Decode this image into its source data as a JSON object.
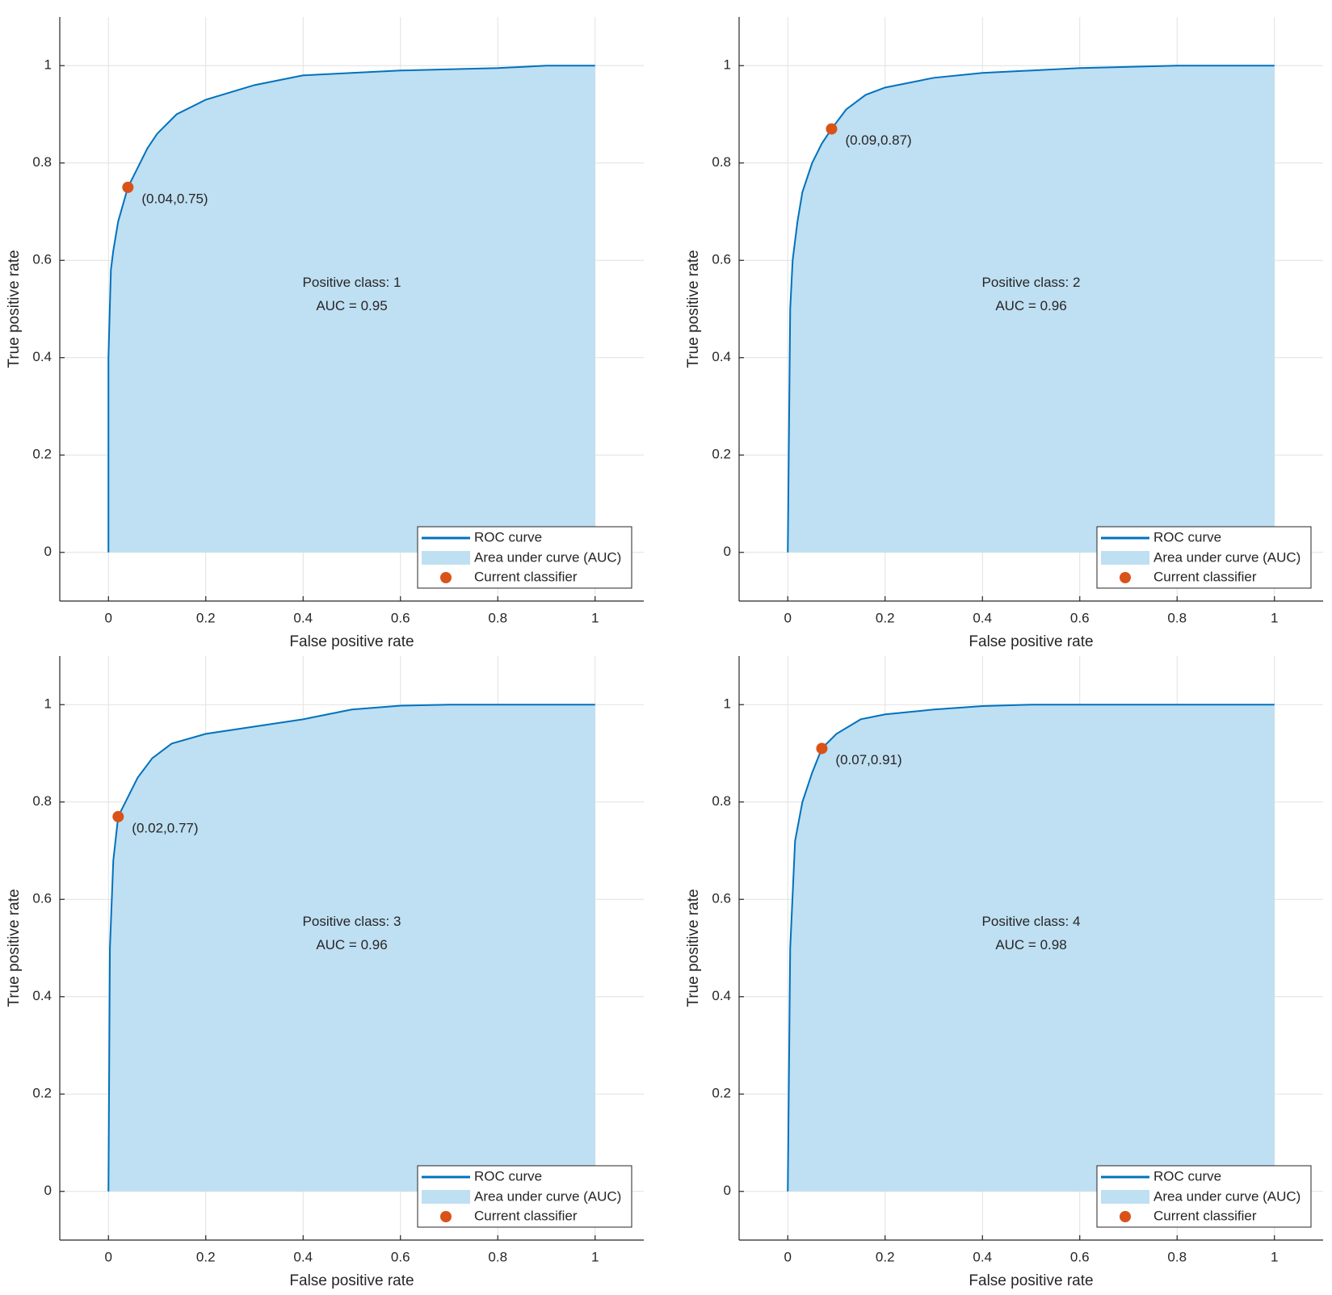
{
  "chart_data": [
    {
      "type": "roc",
      "xlabel": "False positive rate",
      "ylabel": "True positive rate",
      "annotation": [
        "Positive class: 1",
        "AUC = 0.95"
      ],
      "xlim": [
        -0.1,
        1.1
      ],
      "ylim": [
        -0.1,
        1.1
      ],
      "xticks": [
        0,
        0.2,
        0.4,
        0.6,
        0.8,
        1
      ],
      "yticks": [
        0,
        0.2,
        0.4,
        0.6,
        0.8,
        1
      ],
      "grid": true,
      "x": [
        0,
        0,
        0.005,
        0.01,
        0.02,
        0.04,
        0.06,
        0.08,
        0.1,
        0.14,
        0.2,
        0.3,
        0.4,
        0.5,
        0.6,
        0.8,
        0.9,
        1
      ],
      "series": [
        {
          "name": "ROC curve",
          "color": "#0072bd",
          "values": [
            0,
            0.4,
            0.58,
            0.62,
            0.68,
            0.75,
            0.79,
            0.83,
            0.86,
            0.9,
            0.93,
            0.96,
            0.98,
            0.985,
            0.99,
            0.995,
            1,
            1
          ]
        }
      ],
      "area_name": "Area under curve (AUC)",
      "area_color": "#bfdff2",
      "point": {
        "name": "Current classifier",
        "x": 0.04,
        "y": 0.75,
        "label": "(0.04,0.75)",
        "color": "#d95319"
      },
      "legend": "lower right"
    },
    {
      "type": "roc",
      "xlabel": "False positive rate",
      "ylabel": "True positive rate",
      "annotation": [
        "Positive class: 2",
        "AUC = 0.96"
      ],
      "xlim": [
        -0.1,
        1.1
      ],
      "ylim": [
        -0.1,
        1.1
      ],
      "xticks": [
        0,
        0.2,
        0.4,
        0.6,
        0.8,
        1
      ],
      "yticks": [
        0,
        0.2,
        0.4,
        0.6,
        0.8,
        1
      ],
      "grid": true,
      "x": [
        0,
        0.005,
        0.01,
        0.02,
        0.03,
        0.05,
        0.07,
        0.09,
        0.12,
        0.16,
        0.2,
        0.3,
        0.4,
        0.6,
        0.8,
        1
      ],
      "series": [
        {
          "name": "ROC curve",
          "color": "#0072bd",
          "values": [
            0,
            0.5,
            0.6,
            0.68,
            0.74,
            0.8,
            0.84,
            0.87,
            0.91,
            0.94,
            0.955,
            0.975,
            0.985,
            0.995,
            1,
            1
          ]
        }
      ],
      "area_name": "Area under curve (AUC)",
      "area_color": "#bfdff2",
      "point": {
        "name": "Current classifier",
        "x": 0.09,
        "y": 0.87,
        "label": "(0.09,0.87)",
        "color": "#d95319"
      },
      "legend": "lower right"
    },
    {
      "type": "roc",
      "xlabel": "False positive rate",
      "ylabel": "True positive rate",
      "annotation": [
        "Positive class: 3",
        "AUC = 0.96"
      ],
      "xlim": [
        -0.1,
        1.1
      ],
      "ylim": [
        -0.1,
        1.1
      ],
      "xticks": [
        0,
        0.2,
        0.4,
        0.6,
        0.8,
        1
      ],
      "yticks": [
        0,
        0.2,
        0.4,
        0.6,
        0.8,
        1
      ],
      "grid": true,
      "x": [
        0,
        0.003,
        0.01,
        0.02,
        0.04,
        0.06,
        0.09,
        0.13,
        0.2,
        0.3,
        0.4,
        0.5,
        0.6,
        0.7,
        1
      ],
      "series": [
        {
          "name": "ROC curve",
          "color": "#0072bd",
          "values": [
            0,
            0.5,
            0.68,
            0.77,
            0.81,
            0.85,
            0.89,
            0.92,
            0.94,
            0.955,
            0.97,
            0.99,
            0.998,
            1,
            1
          ]
        }
      ],
      "area_name": "Area under curve (AUC)",
      "area_color": "#bfdff2",
      "point": {
        "name": "Current classifier",
        "x": 0.02,
        "y": 0.77,
        "label": "(0.02,0.77)",
        "color": "#d95319"
      },
      "legend": "lower right"
    },
    {
      "type": "roc",
      "xlabel": "False positive rate",
      "ylabel": "True positive rate",
      "annotation": [
        "Positive class: 4",
        "AUC = 0.98"
      ],
      "xlim": [
        -0.1,
        1.1
      ],
      "ylim": [
        -0.1,
        1.1
      ],
      "xticks": [
        0,
        0.2,
        0.4,
        0.6,
        0.8,
        1
      ],
      "yticks": [
        0,
        0.2,
        0.4,
        0.6,
        0.8,
        1
      ],
      "grid": true,
      "x": [
        0,
        0.005,
        0.015,
        0.03,
        0.05,
        0.07,
        0.1,
        0.15,
        0.2,
        0.3,
        0.4,
        0.5,
        1
      ],
      "series": [
        {
          "name": "ROC curve",
          "color": "#0072bd",
          "values": [
            0,
            0.5,
            0.72,
            0.8,
            0.86,
            0.91,
            0.94,
            0.97,
            0.98,
            0.99,
            0.997,
            1,
            1
          ]
        }
      ],
      "area_name": "Area under curve (AUC)",
      "area_color": "#bfdff2",
      "point": {
        "name": "Current classifier",
        "x": 0.07,
        "y": 0.91,
        "label": "(0.07,0.91)",
        "color": "#d95319"
      },
      "legend": "lower right"
    }
  ]
}
